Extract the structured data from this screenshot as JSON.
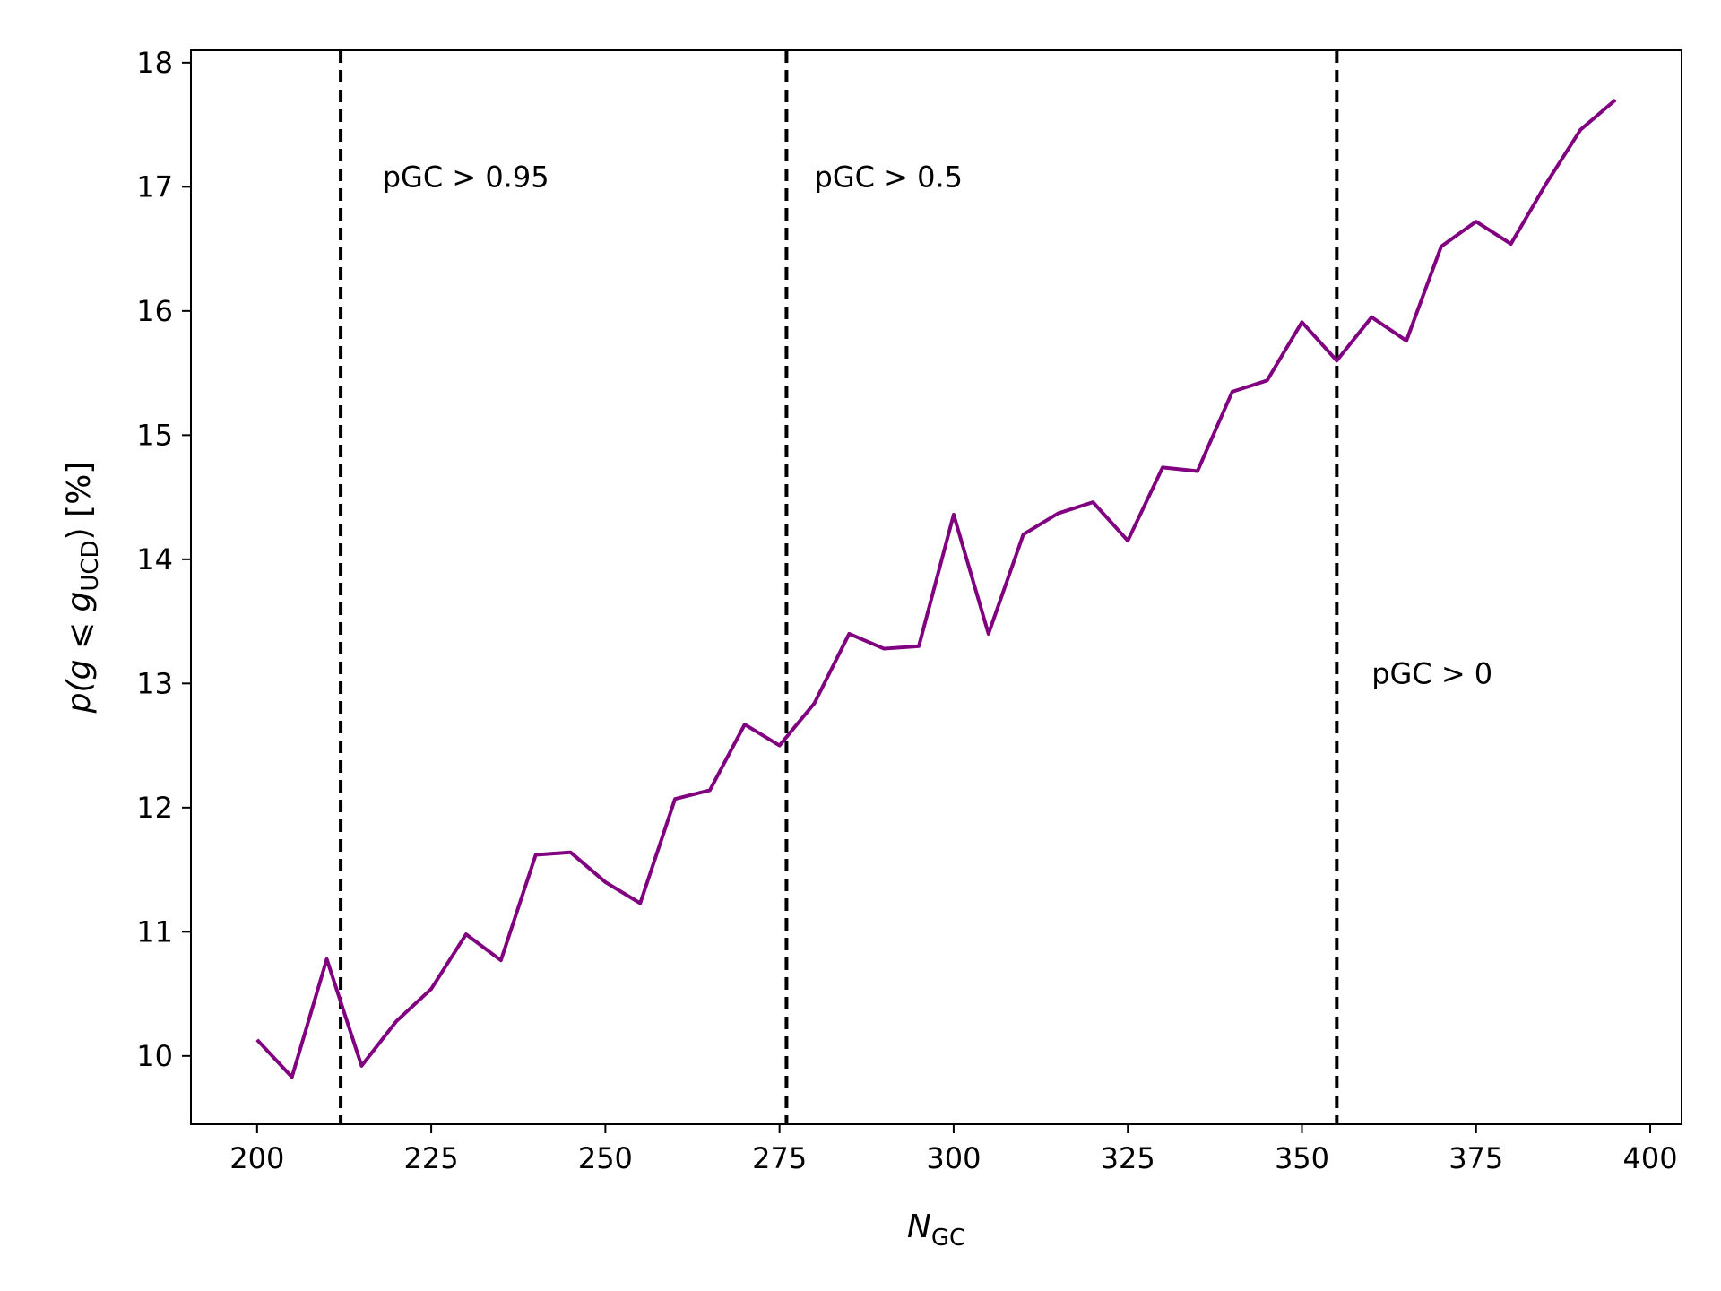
{
  "chart_data": {
    "type": "line",
    "xlabel": {
      "main": "N",
      "sub": "GC"
    },
    "ylabel": {
      "pre": "p(g ⩽ g",
      "sub": "UCD",
      "post": ") [%]"
    },
    "xlim": [
      190.5,
      404.5
    ],
    "ylim": [
      9.45,
      18.1
    ],
    "xticks": [
      200,
      225,
      250,
      275,
      300,
      325,
      350,
      375,
      400
    ],
    "yticks": [
      10,
      11,
      12,
      13,
      14,
      15,
      16,
      17,
      18
    ],
    "grid": false,
    "legend": "none",
    "series": [
      {
        "color": "#800080",
        "x": [
          200,
          205,
          210,
          215,
          220,
          225,
          230,
          235,
          240,
          245,
          250,
          255,
          260,
          265,
          270,
          275,
          280,
          285,
          290,
          295,
          300,
          305,
          310,
          315,
          320,
          325,
          330,
          335,
          340,
          345,
          350,
          355,
          360,
          365,
          370,
          375,
          380,
          385,
          390,
          395
        ],
        "y": [
          10.13,
          9.83,
          10.78,
          9.92,
          10.28,
          10.54,
          10.98,
          10.77,
          11.62,
          11.64,
          11.4,
          11.23,
          12.07,
          12.14,
          12.67,
          12.5,
          12.84,
          13.4,
          13.28,
          13.3,
          14.36,
          13.4,
          14.2,
          14.37,
          14.46,
          14.15,
          14.74,
          14.71,
          15.35,
          15.44,
          15.91,
          15.6,
          15.95,
          15.76,
          16.52,
          16.72,
          16.54,
          17.02,
          17.46,
          17.7
        ]
      }
    ],
    "vlines": [
      {
        "x": 212,
        "color": "#000000",
        "style": "dashed"
      },
      {
        "x": 276,
        "color": "#000000",
        "style": "dashed"
      },
      {
        "x": 355,
        "color": "#000000",
        "style": "dashed"
      }
    ],
    "annotations": [
      {
        "text": "pGC > 0.95",
        "x": 218,
        "y": 17.0
      },
      {
        "text": "pGC > 0.5",
        "x": 280,
        "y": 17.0
      },
      {
        "text": "pGC > 0",
        "x": 360,
        "y": 13.0
      }
    ]
  }
}
